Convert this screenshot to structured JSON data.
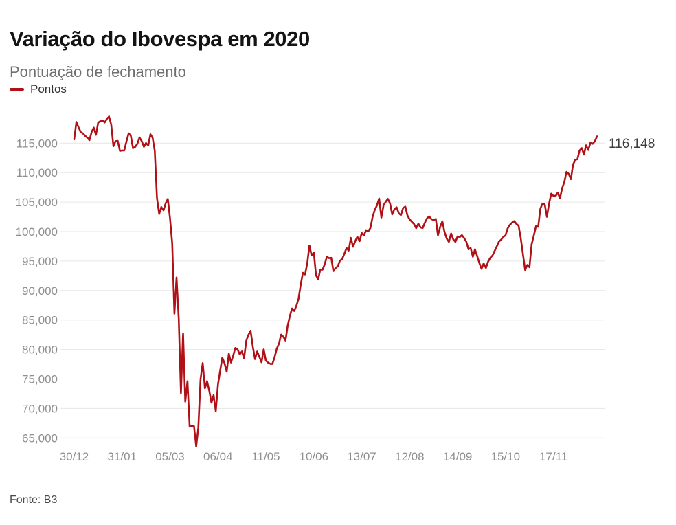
{
  "header": {
    "title": "Variação do Ibovespa em 2020",
    "subtitle": "Pontuação de fechamento"
  },
  "legend": {
    "label": "Pontos",
    "color": "#b01116"
  },
  "footer": {
    "source": "Fonte: B3"
  },
  "chart_data": {
    "type": "line",
    "title": "Variação do Ibovespa em 2020",
    "subtitle": "Pontuação de fechamento",
    "series_name": "Pontos",
    "color": "#b01116",
    "grid_color": "#e6e6e6",
    "axis_label_color": "#8f8f8f",
    "end_label": "116,148",
    "end_label_color": "#3d3d3d",
    "end_value": 116148,
    "grid": "horizontal",
    "legend_position": "top-left",
    "ylim": [
      63000,
      120000
    ],
    "y_ticks": [
      {
        "value": 115000,
        "label": "115,000"
      },
      {
        "value": 110000,
        "label": "110,000"
      },
      {
        "value": 105000,
        "label": "105,000"
      },
      {
        "value": 100000,
        "label": "100,000"
      },
      {
        "value": 95000,
        "label": "95,000"
      },
      {
        "value": 90000,
        "label": "90,000"
      },
      {
        "value": 85000,
        "label": "85,000"
      },
      {
        "value": 80000,
        "label": "80,000"
      },
      {
        "value": 75000,
        "label": "75,000"
      },
      {
        "value": 70000,
        "label": "70,000"
      },
      {
        "value": 65000,
        "label": "65,000"
      }
    ],
    "x_ticks": [
      {
        "index": 0,
        "label": "30/12"
      },
      {
        "index": 22,
        "label": "31/01"
      },
      {
        "index": 44,
        "label": "05/03"
      },
      {
        "index": 66,
        "label": "06/04"
      },
      {
        "index": 88,
        "label": "11/05"
      },
      {
        "index": 110,
        "label": "10/06"
      },
      {
        "index": 132,
        "label": "13/07"
      },
      {
        "index": 154,
        "label": "12/08"
      },
      {
        "index": 176,
        "label": "14/09"
      },
      {
        "index": 198,
        "label": "15/10"
      },
      {
        "index": 220,
        "label": "17/11"
      }
    ],
    "values": [
      115645,
      118573,
      117707,
      116878,
      116662,
      116247,
      115947,
      115503,
      116884,
      117632,
      116414,
      118478,
      118727,
      118856,
      118505,
      119098,
      119528,
      118132,
      114481,
      115336,
      115384,
      113681,
      113761,
      113757,
      115320,
      116662,
      116266,
      114153,
      114355,
      114899,
      115962,
      115342,
      114381,
      115020,
      114592,
      116517,
      115882,
      113681,
      105718,
      102984,
      104172,
      103600,
      104800,
      105537,
      102233,
      97996,
      86067,
      92214,
      85171,
      72583,
      82678,
      71168,
      74618,
      66895,
      67069,
      67000,
      63570,
      66772,
      74955,
      77709,
      73428,
      74639,
      73020,
      70967,
      72253,
      69538,
      74073,
      76358,
      78625,
      77681,
      76220,
      79297,
      77798,
      78972,
      80263,
      80029,
      79174,
      79674,
      78495,
      81491,
      82499,
      83171,
      80506,
      78376,
      79667,
      78759,
      77839,
      80029,
      78119,
      77772,
      77580,
      77556,
      78695,
      80141,
      81001,
      82529,
      82173,
      81520,
      83999,
      85669,
      86949,
      86521,
      87403,
      88620,
      91045,
      93002,
      92723,
      94637,
      97645,
      95943,
      96482,
      92595,
      91894,
      93564,
      93531,
      94456,
      95735,
      95506,
      95547,
      93288,
      93834,
      94104,
      95056,
      95323,
      96209,
      97216,
      96776,
      98936,
      97420,
      98360,
      99125,
      98380,
      99769,
      99349,
      100240,
      100034,
      100627,
      102513,
      103699,
      104437,
      105605,
      102381,
      104478,
      105033,
      105552,
      104762,
      102912,
      103776,
      104126,
      103116,
      102801,
      103999,
      104227,
      102743,
      102060,
      101659,
      101308,
      100583,
      101338,
      100715,
      100608,
      101521,
      102278,
      102570,
      102112,
      101955,
      102143,
      99369,
      100792,
      101743,
      99953,
      98834,
      98246,
      99676,
      98689,
      98256,
      99185,
      99071,
      99406,
      98905,
      98289,
      96999,
      97209,
      95735,
      96999,
      95842,
      94666,
      93679,
      94603,
      93823,
      94891,
      95543,
      95930,
      96710,
      97472,
      98308,
      98642,
      99125,
      99360,
      100550,
      101155,
      101499,
      101789,
      101300,
      100987,
      98900,
      96200,
      93479,
      94340,
      93952,
      97866,
      99313,
      100925,
      100799,
      103913,
      104728,
      104611,
      102508,
      104723,
      106430,
      106071,
      106042,
      106619,
      105634,
      107379,
      108382,
      110133,
      109786,
      108893,
      111342,
      112152,
      112290,
      113750,
      114157,
      113071,
      114625,
      113834,
      115128,
      114880,
      115300,
      116148
    ]
  }
}
